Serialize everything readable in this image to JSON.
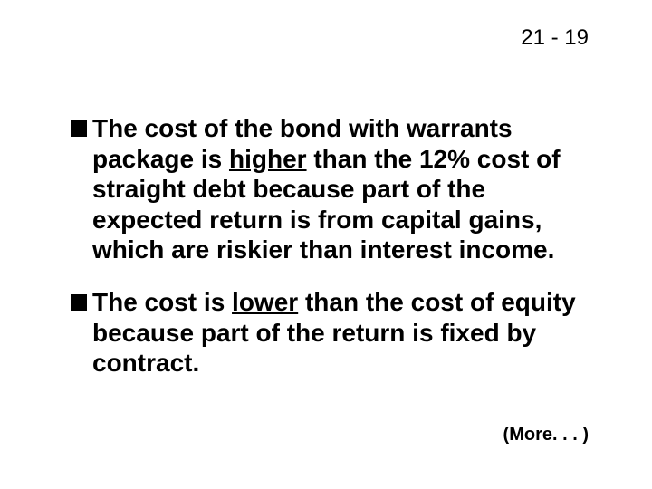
{
  "page_number": "21 - 19",
  "bullets": [
    {
      "pre": "The cost of the bond with warrants package is ",
      "underlined": "higher",
      "post": " than the 12% cost of straight debt because part of the expected return is from capital gains, which are riskier than interest income."
    },
    {
      "pre": "The cost is ",
      "underlined": "lower",
      "post": " than the cost of equity because part of the return is fixed by contract."
    }
  ],
  "more": "(More. . . )",
  "colors": {
    "background": "#ffffff",
    "text": "#000000",
    "bullet": "#000000"
  },
  "typography": {
    "body_fontsize": 28,
    "body_weight": "bold",
    "page_number_fontsize": 24,
    "more_fontsize": 20,
    "line_height": 1.2
  }
}
